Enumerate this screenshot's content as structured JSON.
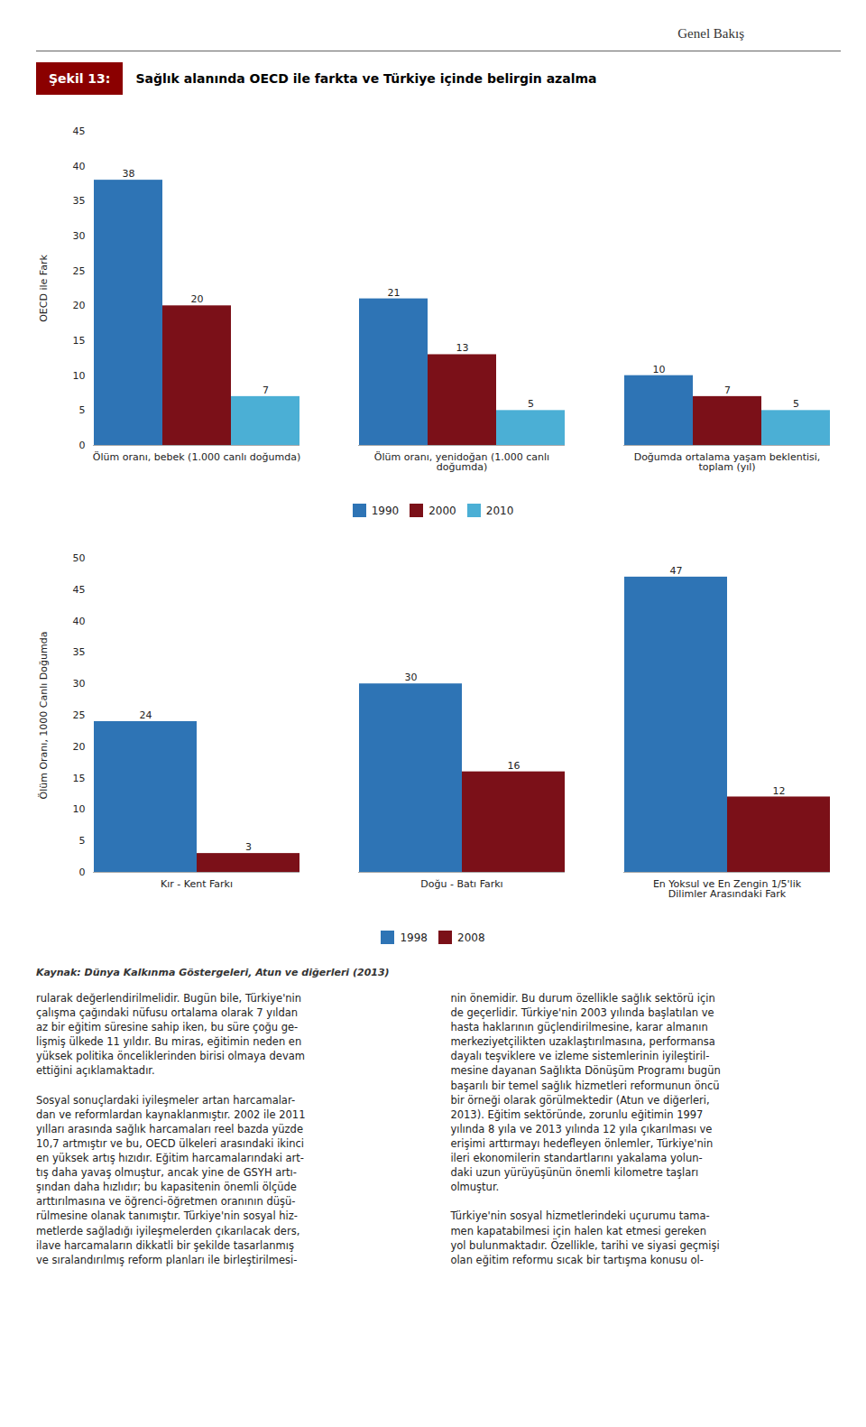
{
  "title": "Sağlık alanında OECD ile farkta ve Türkiye içinde belirgin azalma",
  "annotations": [
    "Genel Bakış",
    "Şekil 13:",
    "Kaynak: Dünya Kalkınma Göstergeleri, Atun ve diğerleri (2013)",
    "rularak değerlendirilmelidir. Bugün bile, Türkiye'nin\nçalışma çağındaki nüfusu ortalama olarak 7 yıldan\naz bir eğitim süresine sahip iken, bu süre çoğu ge-\nlişmiş ülkede 11 yıldır. Bu miras, eğitimin neden en\nyüksek politika önceliklerinden birisi olmaya devam\nettiğini açıklamaktadır.\n\nSosyal sonuçlardaki iyileşmeler artan harcamalar-\ndan ve reformlardan kaynaklanmıştır. 2002 ile 2011\nyılları arasında sağlık harcamaları reel bazda yüzde\n10,7 artmıştır ve bu, OECD ülkeleri arasındaki ikinci\nen yüksek artış hızıdır. Eğitim harcamalarındaki art-\ntış daha yavaş olmuştur, ancak yine de GSYH artı-\nşından daha hızlıdır; bu kapasitenin önemli ölçüde\narttırılmasına ve öğrenci-öğretmen oranının düşü-\nrülmesine olanak tanımıştır. Türkiye'nin sosyal hiz-\nmetlerde sağladığı iyileşmelerden çıkarılacak ders,\nilave harcamaların dikkatli bir şekilde tasarlanmış\nve sıralandırılmış reform planları ile birleştirilmesi-",
    "nin önemidir. Bu durum özellikle sağlık sektörü için\nde geçerlidir. Türkiye'nin 2003 yılında başlatılan ve\nhasta haklarının güçlendirilmesine, karar almanın\nmerkeziyetçilikten uzaklaştırılmasına, performansa\ndayalı teşviklere ve izleme sistemlerinin iyileştiril-\nmesine dayanan Sağlıkta Dönüşüm Programı bugün\nbaşarılı bir temel sağlık hizmetleri reformunun öncü\nbir örneği olarak görülmektedir (Atun ve diğerleri,\n2013). Eğitim sektöründe, zorunlu eğitimin 1997\nyılında 8 yıla ve 2013 yılında 12 yıla çıkarılması ve\nerişimi arttırmayı hedefleyen önlemler, Türkiye'nin\nileri ekonomilerin standartlarını yakalama yolun-\ndaki uzun yürüyüşünün önemli kilometre taşları\nolmuştur.\n\nTürkiye'nin sosyal hizmetlerindeki uçurumu tama-\nmen kapatabilmesi için halen kat etmesi gereken\nyol bulunmaktadır. Özellikle, tarihi ve siyasi geçmişi\nolan eğitim reformu sıcak bir tartışma konusu ol-"
  ],
  "chart_data": [
    {
      "type": "bar",
      "categories": [
        "Ölüm oranı, bebek (1.000 canlı doğumda)",
        "Ölüm oranı, yenidoğan (1.000 canlı\ndoğumda)",
        "Doğumda ortalama yaşam beklentisi,\ntoplam (yıl)"
      ],
      "series": [
        {
          "name": "1990",
          "color": "#2E74B5",
          "values": [
            38,
            21,
            10
          ]
        },
        {
          "name": "2000",
          "color": "#7B1018",
          "values": [
            20,
            13,
            7
          ]
        },
        {
          "name": "2010",
          "color": "#4BAFD5",
          "values": [
            7,
            5,
            5
          ]
        }
      ],
      "ylabel": "OECD ile Fark",
      "ylim": [
        0,
        45
      ],
      "yticks": [
        0,
        5,
        10,
        15,
        20,
        25,
        30,
        35,
        40,
        45
      ],
      "data_labels": true,
      "grid": false,
      "legend": "bottom"
    },
    {
      "type": "bar",
      "categories": [
        "Kır - Kent Farkı",
        "Doğu - Batı Farkı",
        "En Yoksul ve En Zengin 1/5'lik\nDilimler Arasındaki Fark"
      ],
      "series": [
        {
          "name": "1998",
          "color": "#2E74B5",
          "values": [
            24,
            30,
            47
          ]
        },
        {
          "name": "2008",
          "color": "#7B1018",
          "values": [
            3,
            16,
            12
          ]
        }
      ],
      "ylabel": "Ölüm Oranı, 1000 Canlı Doğumda",
      "ylim": [
        0,
        50
      ],
      "yticks": [
        0,
        5,
        10,
        15,
        20,
        25,
        30,
        35,
        40,
        45,
        50
      ],
      "data_labels": true,
      "grid": false,
      "legend": "bottom"
    }
  ]
}
